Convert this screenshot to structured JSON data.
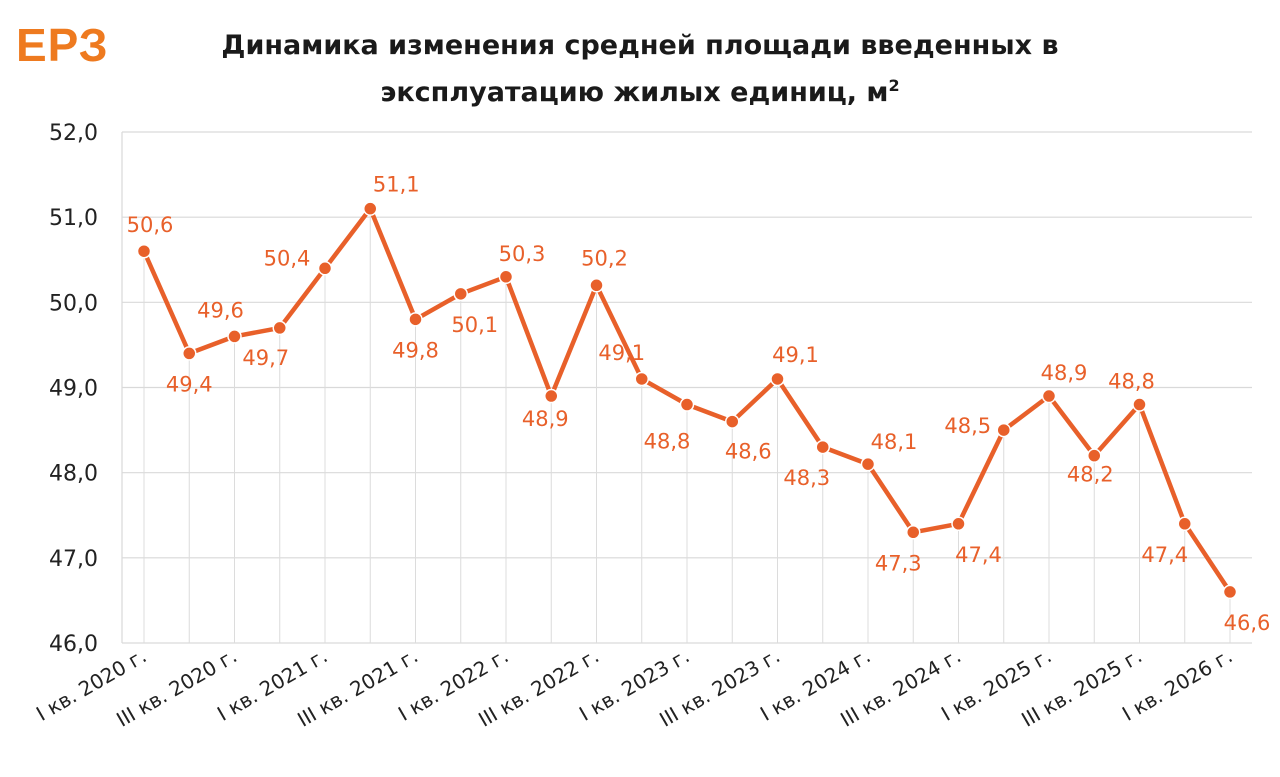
{
  "logo_text": "ЕРЗ",
  "title_line1": "Динамика изменения средней площади введенных в",
  "title_line2": "эксплуатацию жилых единиц, м",
  "title_superscript": "2",
  "colors": {
    "line": "#E8602A",
    "logo": "#EE7A1F",
    "grid": "#d9d9d9"
  },
  "chart_data": {
    "type": "line",
    "title": "Динамика изменения средней площади введенных в эксплуатацию жилых единиц, м²",
    "xlabel": "",
    "ylabel": "",
    "ylim": [
      46.0,
      52.0
    ],
    "yticks": [
      "46,0",
      "47,0",
      "48,0",
      "49,0",
      "50,0",
      "51,0",
      "52,0"
    ],
    "grid": true,
    "x_tick_labels": [
      "I кв. 2020 г.",
      "III кв. 2020 г.",
      "I кв. 2021 г.",
      "III кв. 2021 г.",
      "I кв. 2022 г.",
      "III кв. 2022 г.",
      "I кв. 2023 г.",
      "III кв. 2023 г.",
      "I кв. 2024 г.",
      "III кв. 2024 г.",
      "I кв. 2025 г.",
      "III кв. 2025 г.",
      "I кв. 2026 г."
    ],
    "series": [
      {
        "values": [
          50.6,
          49.4,
          49.6,
          49.7,
          50.4,
          51.1,
          49.8,
          50.1,
          50.3,
          48.9,
          50.2,
          49.1,
          48.8,
          48.6,
          49.1,
          48.3,
          48.1,
          47.3,
          47.4,
          48.5,
          48.9,
          48.2,
          48.8,
          47.4,
          46.6
        ],
        "labels": [
          "50,6",
          "49,4",
          "49,6",
          "49,7",
          "50,4",
          "51,1",
          "49,8",
          "50,1",
          "50,3",
          "48,9",
          "50,2",
          "49,1",
          "48,8",
          "48,6",
          "49,1",
          "48,3",
          "48,1",
          "47,3",
          "47,4",
          "48,5",
          "48,9",
          "48,2",
          "48,8",
          "47,4",
          "46,6"
        ]
      }
    ]
  }
}
